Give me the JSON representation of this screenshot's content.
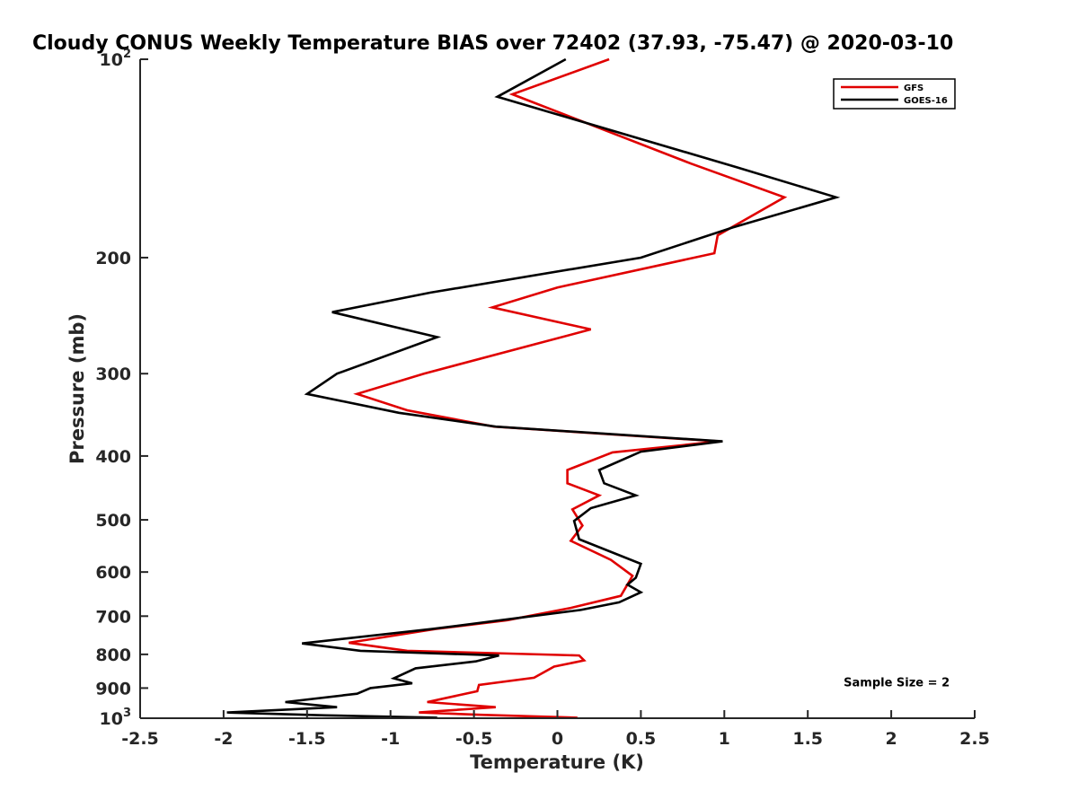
{
  "chart_data": {
    "type": "line",
    "title": "Cloudy CONUS Weekly Temperature BIAS over 72402 (37.93, -75.47) @ 2020-03-10",
    "xlabel": "Temperature (K)",
    "ylabel": "Pressure (mb)",
    "xlim": [
      -2.5,
      2.5
    ],
    "ylim": [
      100,
      1000
    ],
    "yscale": "log",
    "y_reversed": true,
    "grid": false,
    "legend_position": "top-right",
    "x_ticks": [
      "-2.5",
      "-2",
      "-1.5",
      "-1",
      "-0.5",
      "0",
      "0.5",
      "1",
      "1.5",
      "2",
      "2.5"
    ],
    "x_tick_values": [
      -2.5,
      -2,
      -1.5,
      -1,
      -0.5,
      0,
      0.5,
      1,
      1.5,
      2,
      2.5
    ],
    "y_ticks": [
      {
        "value": 100,
        "base": "10",
        "exp": "2"
      },
      {
        "value": 200,
        "base": "200",
        "exp": ""
      },
      {
        "value": 300,
        "base": "300",
        "exp": ""
      },
      {
        "value": 400,
        "base": "400",
        "exp": ""
      },
      {
        "value": 500,
        "base": "500",
        "exp": ""
      },
      {
        "value": 600,
        "base": "600",
        "exp": ""
      },
      {
        "value": 700,
        "base": "700",
        "exp": ""
      },
      {
        "value": 800,
        "base": "800",
        "exp": ""
      },
      {
        "value": 900,
        "base": "900",
        "exp": ""
      },
      {
        "value": 1000,
        "base": "10",
        "exp": "3"
      }
    ],
    "series": [
      {
        "name": "GFS",
        "color": "#e00000",
        "points": [
          [
            0.31,
            100
          ],
          [
            -0.27,
            113
          ],
          [
            0.8,
            144
          ],
          [
            1.36,
            162
          ],
          [
            0.96,
            185
          ],
          [
            0.94,
            197
          ],
          [
            0.0,
            222
          ],
          [
            -0.39,
            238
          ],
          [
            0.2,
            257
          ],
          [
            -0.8,
            300
          ],
          [
            -1.2,
            322
          ],
          [
            -0.9,
            341
          ],
          [
            -0.38,
            361
          ],
          [
            0.97,
            380
          ],
          [
            0.33,
            395
          ],
          [
            0.06,
            420
          ],
          [
            0.06,
            440
          ],
          [
            0.25,
            459
          ],
          [
            0.09,
            482
          ],
          [
            0.15,
            510
          ],
          [
            0.08,
            538
          ],
          [
            0.32,
            575
          ],
          [
            0.45,
            608
          ],
          [
            0.38,
            652
          ],
          [
            0.08,
            680
          ],
          [
            -0.3,
            710
          ],
          [
            -0.73,
            732
          ],
          [
            -1.25,
            768
          ],
          [
            -0.9,
            790
          ],
          [
            0.13,
            803
          ],
          [
            0.16,
            817
          ],
          [
            -0.02,
            835
          ],
          [
            -0.14,
            868
          ],
          [
            -0.47,
            890
          ],
          [
            -0.48,
            910
          ],
          [
            -0.78,
            945
          ],
          [
            -0.37,
            962
          ],
          [
            -0.83,
            980
          ],
          [
            -0.46,
            988
          ],
          [
            0.12,
            998
          ]
        ]
      },
      {
        "name": "GOES-16",
        "color": "#000000",
        "points": [
          [
            0.05,
            100
          ],
          [
            -0.36,
            114
          ],
          [
            1.08,
            146
          ],
          [
            1.67,
            162
          ],
          [
            1.05,
            180
          ],
          [
            0.5,
            200
          ],
          [
            -0.76,
            226
          ],
          [
            -1.35,
            242
          ],
          [
            -0.72,
            264
          ],
          [
            -1.32,
            300
          ],
          [
            -1.5,
            322
          ],
          [
            -0.95,
            344
          ],
          [
            -0.37,
            361
          ],
          [
            0.99,
            380
          ],
          [
            0.5,
            394
          ],
          [
            0.25,
            420
          ],
          [
            0.28,
            440
          ],
          [
            0.47,
            459
          ],
          [
            0.2,
            480
          ],
          [
            0.1,
            502
          ],
          [
            0.13,
            535
          ],
          [
            0.5,
            583
          ],
          [
            0.47,
            612
          ],
          [
            0.42,
            627
          ],
          [
            0.5,
            644
          ],
          [
            0.37,
            667
          ],
          [
            0.14,
            685
          ],
          [
            -0.75,
            732
          ],
          [
            -1.53,
            770
          ],
          [
            -1.18,
            790
          ],
          [
            -0.35,
            803
          ],
          [
            -0.49,
            820
          ],
          [
            -0.85,
            840
          ],
          [
            -0.98,
            870
          ],
          [
            -0.87,
            885
          ],
          [
            -1.12,
            900
          ],
          [
            -1.2,
            918
          ],
          [
            -1.63,
            945
          ],
          [
            -1.32,
            962
          ],
          [
            -1.98,
            980
          ],
          [
            -1.39,
            990
          ],
          [
            -0.72,
            998
          ]
        ]
      }
    ],
    "annotations": [
      {
        "text": "Sample Size = 2",
        "x": 2.35,
        "y": 880
      }
    ]
  }
}
